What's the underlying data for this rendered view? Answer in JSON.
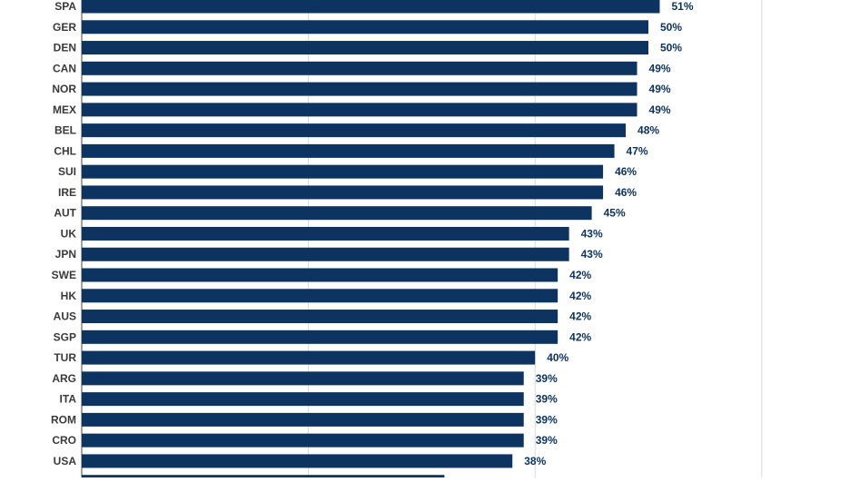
{
  "chart_data": {
    "type": "bar",
    "orientation": "horizontal",
    "categories": [
      "SPA",
      "GER",
      "DEN",
      "CAN",
      "NOR",
      "MEX",
      "BEL",
      "CHL",
      "SUI",
      "IRE",
      "AUT",
      "UK",
      "JPN",
      "SWE",
      "HK",
      "AUS",
      "SGP",
      "TUR",
      "ARG",
      "ITA",
      "ROM",
      "CRO",
      "USA"
    ],
    "values": [
      51,
      50,
      50,
      49,
      49,
      49,
      48,
      47,
      46,
      46,
      45,
      43,
      43,
      42,
      42,
      42,
      42,
      40,
      39,
      39,
      39,
      39,
      38
    ],
    "value_labels": [
      "51%",
      "50%",
      "50%",
      "49%",
      "49%",
      "49%",
      "48%",
      "47%",
      "46%",
      "46%",
      "45%",
      "43%",
      "43%",
      "42%",
      "42%",
      "42%",
      "42%",
      "40%",
      "39%",
      "39%",
      "39%",
      "39%",
      "38%"
    ],
    "partial_bar_value": 32,
    "xlim": [
      0,
      60
    ],
    "grid": true,
    "colors": {
      "bar": "#0d3461",
      "label": "#3a3a3a",
      "value_label": "#0d3461",
      "grid": "#d9d9d9",
      "axis": "#444444"
    }
  }
}
